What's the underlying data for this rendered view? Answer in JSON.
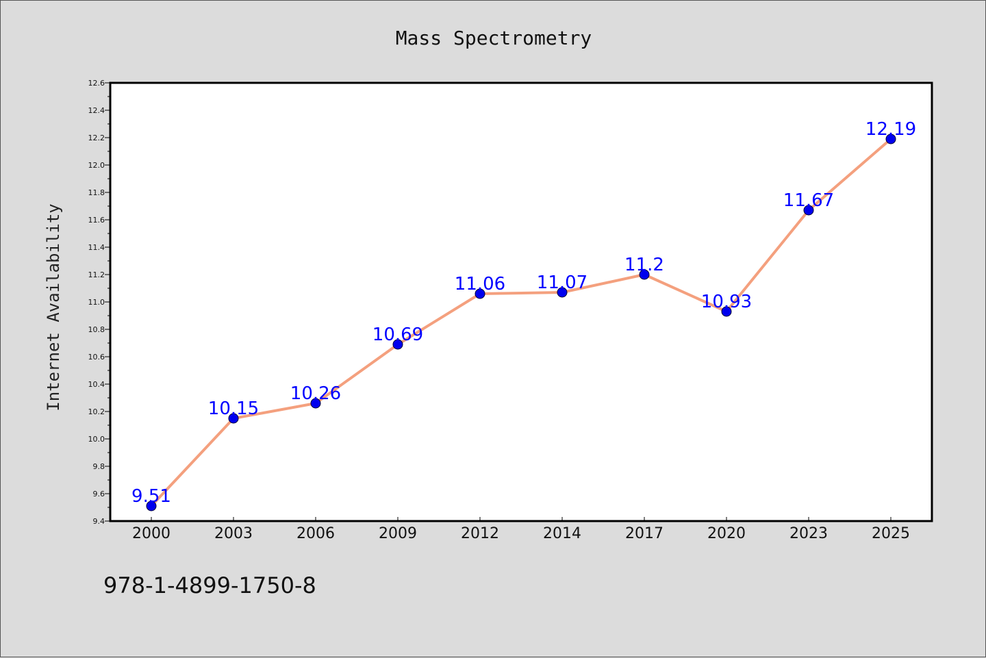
{
  "chart_data": {
    "type": "line",
    "title": "Mass Spectrometry",
    "xlabel": "",
    "ylabel": "Internet Availability",
    "categories": [
      "2000",
      "2003",
      "2006",
      "2009",
      "2012",
      "2014",
      "2017",
      "2020",
      "2023",
      "2025"
    ],
    "series": [
      {
        "values": [
          9.51,
          10.15,
          10.26,
          10.69,
          11.06,
          11.07,
          11.2,
          10.93,
          11.67,
          12.19
        ],
        "data_labels": [
          "9.51",
          "10.15",
          "10.26",
          "10.69",
          "11.06",
          "11.07",
          "11.2",
          "10.93",
          "11.67",
          "12.19"
        ]
      }
    ],
    "ylim": [
      9.4,
      12.6
    ],
    "yticks": [
      "9.4",
      "9.6",
      "9.8",
      "10.0",
      "10.2",
      "10.4",
      "10.6",
      "10.8",
      "11.0",
      "11.2",
      "11.4",
      "11.6",
      "11.8",
      "12.0",
      "12.2",
      "12.4",
      "12.6"
    ],
    "grid": false,
    "legend": "none",
    "colors": {
      "line": "#f4a07e",
      "marker_fill": "#0000ee",
      "marker_edge": "#000033",
      "data_label": "#0000ff",
      "plot_background": "#ffffff",
      "figure_background": "#dcdcdc"
    }
  },
  "footer": {
    "text": "978-1-4899-1750-8"
  }
}
